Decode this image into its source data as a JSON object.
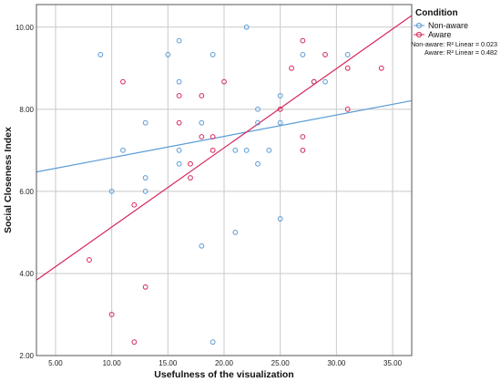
{
  "chart_data": {
    "type": "scatter",
    "title": "",
    "xlabel": "Usefulness of the visualization",
    "ylabel": "Social Closeness Index",
    "xlim": [
      3.3,
      36.7
    ],
    "ylim": [
      2.0,
      10.55
    ],
    "x_ticks": [
      5,
      10,
      15,
      20,
      25,
      30,
      35
    ],
    "x_tick_labels": [
      "5.00",
      "10.00",
      "15.00",
      "20.00",
      "25.00",
      "30.00",
      "35.00"
    ],
    "y_ticks": [
      2,
      4,
      6,
      8,
      10
    ],
    "y_tick_labels": [
      "2.00",
      "4.00",
      "6.00",
      "8.00",
      "10.00"
    ],
    "grid": true,
    "legend": {
      "title": "Condition",
      "placement": "top-right",
      "r2_lines": [
        "Non-aware: R² Linear = 0.023",
        "Aware: R² Linear = 0.482"
      ]
    },
    "series": [
      {
        "name": "Non-aware",
        "color": "#5b9bd5",
        "fit": {
          "intercept": 6.3,
          "slope": 0.052
        },
        "points": [
          [
            9,
            9.33
          ],
          [
            10,
            6.0
          ],
          [
            11,
            7.0
          ],
          [
            13,
            7.67
          ],
          [
            13,
            6.33
          ],
          [
            13,
            6.0
          ],
          [
            15,
            9.33
          ],
          [
            16,
            9.67
          ],
          [
            16,
            8.67
          ],
          [
            16,
            7.0
          ],
          [
            16,
            6.67
          ],
          [
            18,
            7.67
          ],
          [
            18,
            4.67
          ],
          [
            19,
            9.33
          ],
          [
            19,
            2.33
          ],
          [
            21,
            7.0
          ],
          [
            21,
            5.0
          ],
          [
            22,
            10.0
          ],
          [
            22,
            7.0
          ],
          [
            23,
            8.0
          ],
          [
            23,
            7.67
          ],
          [
            23,
            6.67
          ],
          [
            24,
            7.0
          ],
          [
            25,
            8.33
          ],
          [
            25,
            7.67
          ],
          [
            25,
            5.33
          ],
          [
            27,
            9.33
          ],
          [
            28,
            8.67
          ],
          [
            29,
            8.67
          ],
          [
            31,
            9.33
          ]
        ]
      },
      {
        "name": "Aware",
        "color": "#d6275a",
        "fit": {
          "intercept": 3.2,
          "slope": 0.193
        },
        "points": [
          [
            8,
            4.33
          ],
          [
            10,
            3.0
          ],
          [
            11,
            8.67
          ],
          [
            12,
            5.67
          ],
          [
            12,
            2.33
          ],
          [
            13,
            3.67
          ],
          [
            16,
            8.33
          ],
          [
            16,
            7.67
          ],
          [
            17,
            6.67
          ],
          [
            17,
            6.33
          ],
          [
            18,
            8.33
          ],
          [
            18,
            7.33
          ],
          [
            19,
            7.33
          ],
          [
            19,
            7.0
          ],
          [
            20,
            8.67
          ],
          [
            25,
            8.0
          ],
          [
            26,
            9.0
          ],
          [
            27,
            9.67
          ],
          [
            27,
            7.33
          ],
          [
            27,
            7.0
          ],
          [
            28,
            8.67
          ],
          [
            29,
            9.33
          ],
          [
            31,
            9.0
          ],
          [
            31,
            8.0
          ],
          [
            34,
            9.0
          ]
        ]
      }
    ]
  }
}
